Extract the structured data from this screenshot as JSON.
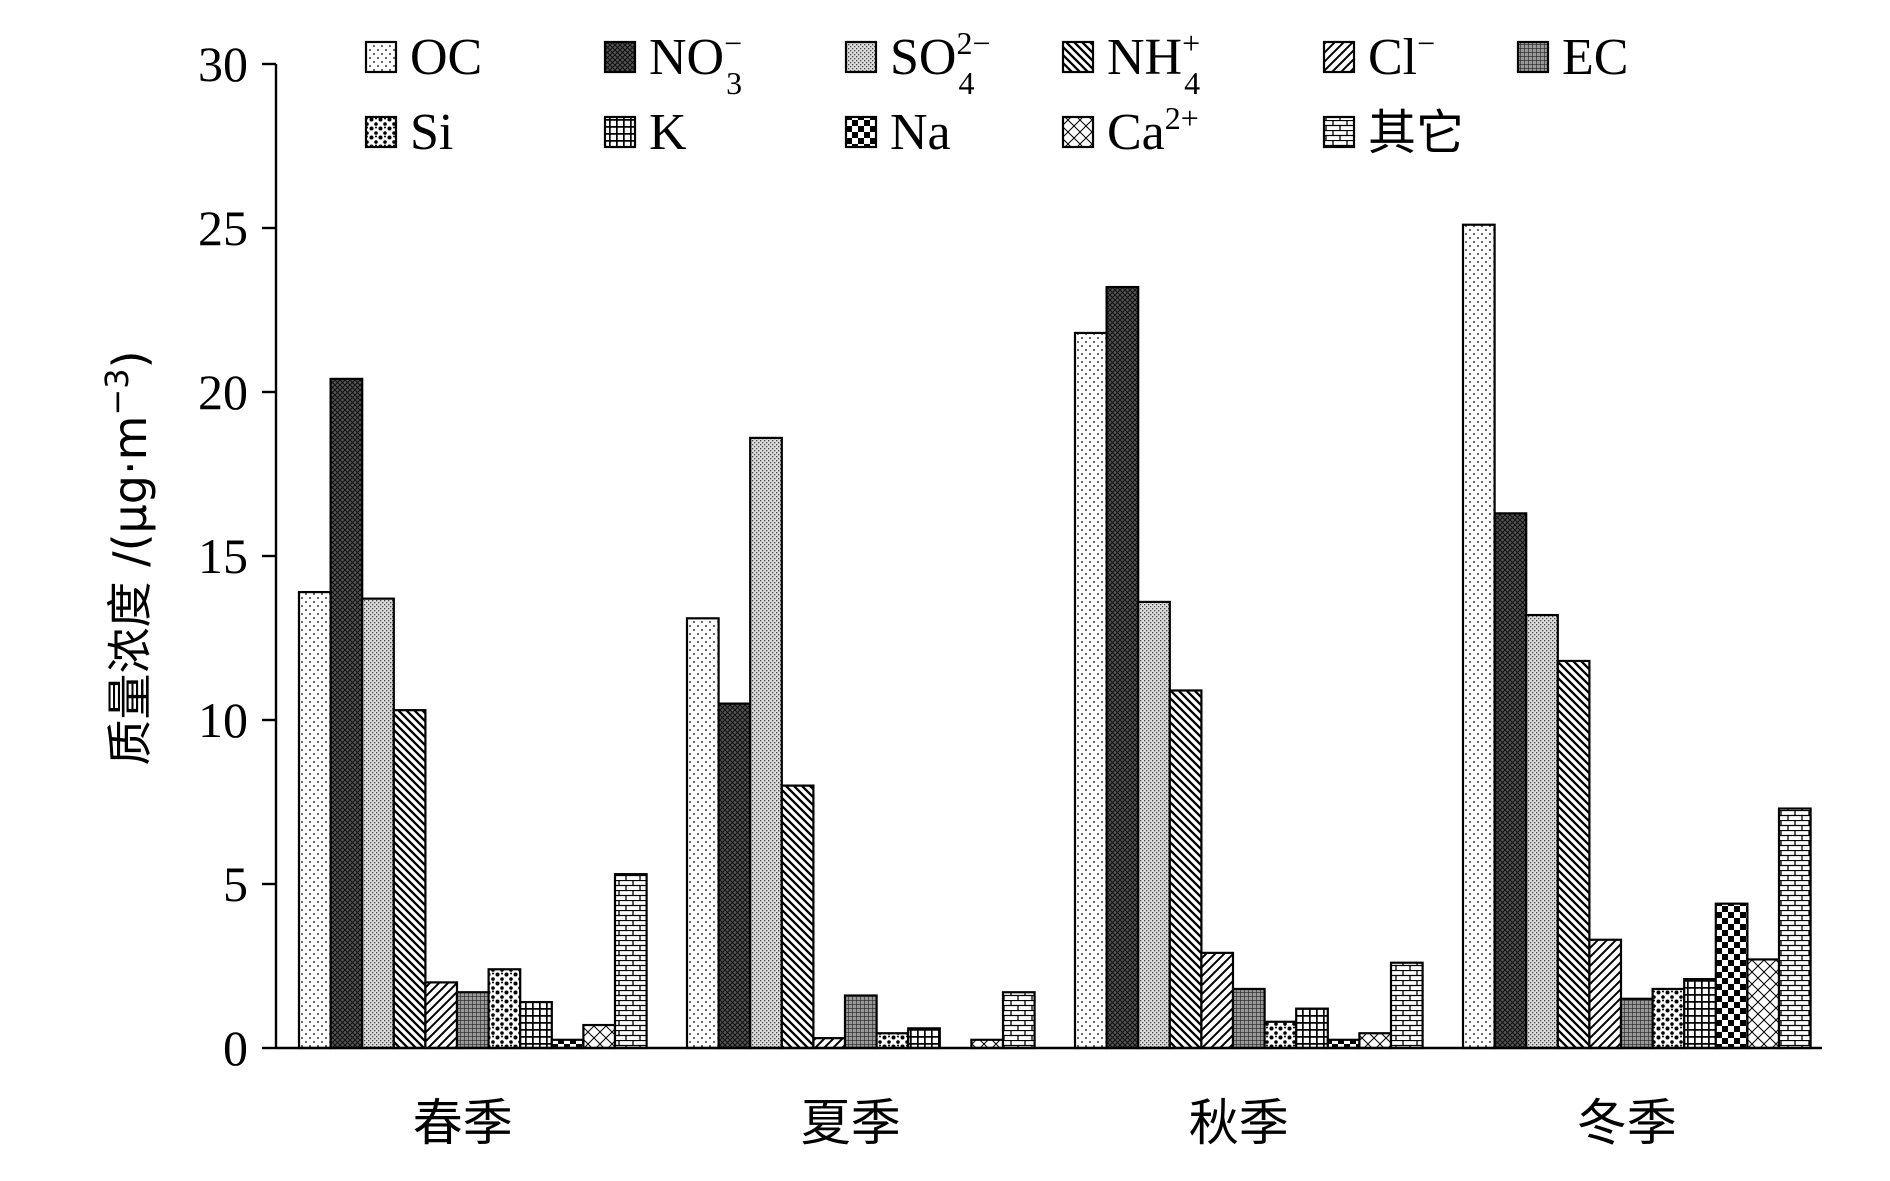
{
  "chart_data": {
    "type": "bar",
    "title": "",
    "ylabel": "质量浓度 /(μg·m−3)",
    "ylabel_parts": {
      "main": "质量浓度 /(μg·m",
      "sup": "−3",
      "close": ")"
    },
    "xlabel": "",
    "ylim": [
      0,
      30
    ],
    "yticks": [
      "0",
      "5",
      "10",
      "15",
      "20",
      "25",
      "30"
    ],
    "categories": [
      "春季",
      "夏季",
      "秋季",
      "冬季"
    ],
    "series": [
      {
        "name": "OC",
        "label_main": "OC",
        "label_sub": "",
        "label_sup": "",
        "pattern": "dots-sparse",
        "values": [
          13.9,
          13.1,
          21.8,
          25.1
        ]
      },
      {
        "name": "NO3−",
        "label_main": "NO",
        "label_sub": "3",
        "label_sup": "−",
        "pattern": "crosshatch-dark",
        "values": [
          20.4,
          10.5,
          23.2,
          16.3
        ]
      },
      {
        "name": "SO42−",
        "label_main": "SO",
        "label_sub": "4",
        "label_sup": "2−",
        "pattern": "dots-dense",
        "values": [
          13.7,
          18.6,
          13.6,
          13.2
        ]
      },
      {
        "name": "NH4+",
        "label_main": "NH",
        "label_sub": "4",
        "label_sup": "+",
        "pattern": "diag-back",
        "values": [
          10.3,
          8.0,
          10.9,
          11.8
        ]
      },
      {
        "name": "Cl−",
        "label_main": "Cl",
        "label_sub": "",
        "label_sup": "−",
        "pattern": "diag-forward",
        "values": [
          2.0,
          0.3,
          2.9,
          3.3
        ]
      },
      {
        "name": "EC",
        "label_main": "EC",
        "label_sub": "",
        "label_sup": "",
        "pattern": "grid-dark",
        "values": [
          1.7,
          1.6,
          1.8,
          1.5
        ]
      },
      {
        "name": "Si",
        "label_main": "Si",
        "label_sub": "",
        "label_sup": "",
        "pattern": "blobs",
        "values": [
          2.4,
          0.45,
          0.8,
          1.8
        ]
      },
      {
        "name": "K",
        "label_main": "K",
        "label_sub": "",
        "label_sup": "",
        "pattern": "grid-square",
        "values": [
          1.4,
          0.6,
          1.2,
          2.1
        ]
      },
      {
        "name": "Na",
        "label_main": "Na",
        "label_sub": "",
        "label_sup": "",
        "pattern": "checker",
        "values": [
          0.25,
          0.0,
          0.25,
          4.4
        ]
      },
      {
        "name": "Ca2+",
        "label_main": "Ca",
        "label_sub": "",
        "label_sup": "2+",
        "pattern": "diamond",
        "values": [
          0.7,
          0.25,
          0.45,
          2.7
        ]
      },
      {
        "name": "其它",
        "label_main": "其它",
        "label_sub": "",
        "label_sup": "",
        "pattern": "brick",
        "values": [
          5.3,
          1.7,
          2.6,
          7.3
        ]
      }
    ],
    "legend_position": "top"
  }
}
